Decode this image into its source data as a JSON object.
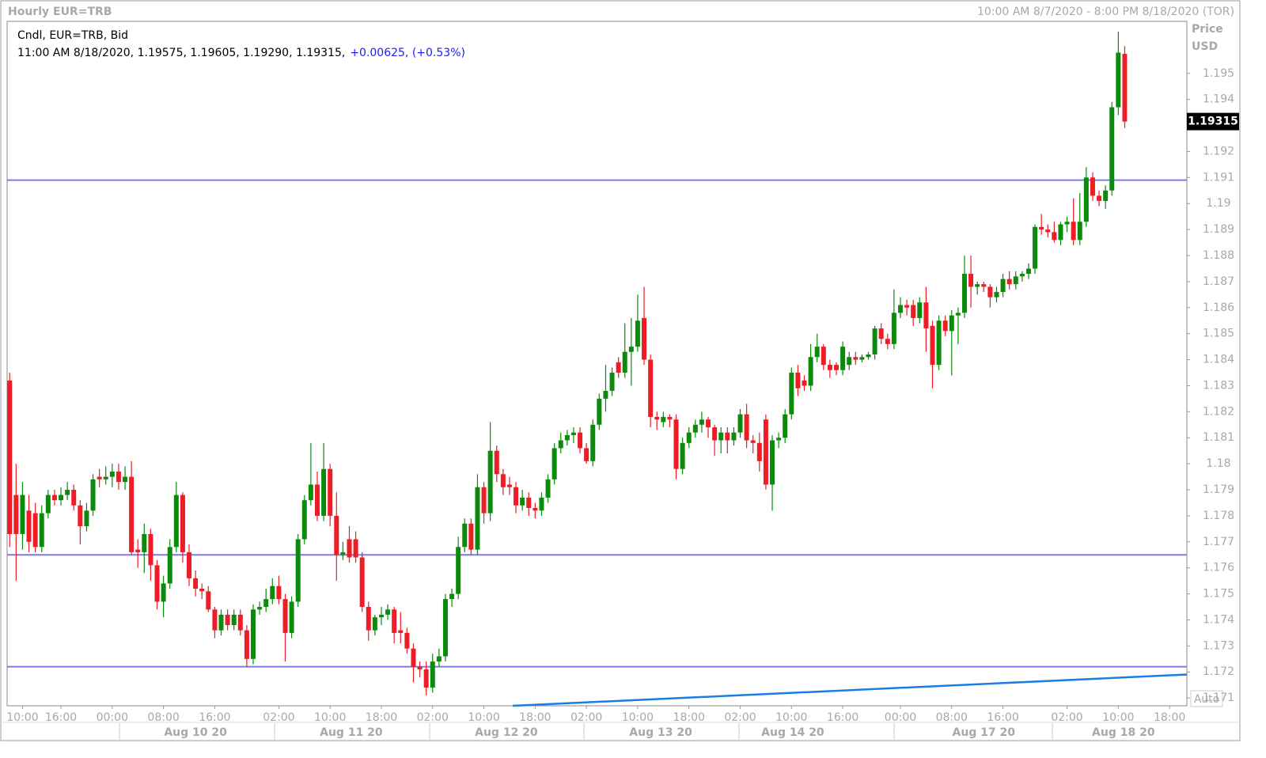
{
  "chart_data": {
    "type": "candlestick",
    "title": "Hourly EUR=TRB",
    "date_range": "10:00 AM 8/7/2020 - 8:00 PM 8/18/2020 (TOR)",
    "legend": {
      "label": "Cndl, EUR=TRB, Bid",
      "info": "11:00 AM 8/18/2020, 1.19575, 1.19605, 1.19290, 1.19315,",
      "change": "+0.00625, (+0.53%)"
    },
    "y_axis_title": "Price",
    "y_axis_unit": "USD",
    "scale_button": "Auto",
    "up_color": "#0c8a0c",
    "down_color": "#ee1c24",
    "open": [
      1.1832,
      1.1788,
      1.1773,
      1.1782,
      1.1781,
      1.1768,
      1.1781,
      1.1788,
      1.1786,
      1.1788,
      1.179,
      1.1784,
      1.1776,
      1.1782,
      1.1795,
      1.1794,
      1.1795,
      1.1797,
      1.1793,
      1.1795,
      1.1767,
      1.1766,
      1.1773,
      1.1761,
      1.1747,
      1.1754,
      1.1768,
      1.1788,
      1.1766,
      1.1756,
      1.1752,
      1.1751,
      1.1744,
      1.1736,
      1.1742,
      1.1738,
      1.1742,
      1.1736,
      1.1725,
      1.1744,
      1.1745,
      1.1748,
      1.1753,
      1.1748,
      1.1735,
      1.1747,
      1.1771,
      1.1786,
      1.1792,
      1.178,
      1.1798,
      1.178,
      1.1765,
      1.1771,
      1.1771,
      1.1764,
      1.1745,
      1.1736,
      1.1741,
      1.1742,
      1.1744,
      1.1736,
      1.1735,
      1.1729,
      1.1722,
      1.1721,
      1.1714,
      1.1724,
      1.1726,
      1.1748,
      1.175,
      1.1768,
      1.1777,
      1.1767,
      1.1791,
      1.1781,
      1.1805,
      1.1796,
      1.1792,
      1.1791,
      1.1784,
      1.1787,
      1.1783,
      1.1782,
      1.1787,
      1.1794,
      1.1806,
      1.1809,
      1.1811,
      1.1812,
      1.1806,
      1.1801,
      1.1815,
      1.1825,
      1.1828,
      1.1839,
      1.1835,
      1.1843,
      1.1845,
      1.1856,
      1.184,
      1.1818,
      1.1816,
      1.1818,
      1.1817,
      1.1798,
      1.1808,
      1.1812,
      1.1815,
      1.1817,
      1.1814,
      1.1809,
      1.1812,
      1.1809,
      1.1812,
      1.1819,
      1.1809,
      1.1808,
      1.1817,
      1.1792,
      1.1809,
      1.181,
      1.1819,
      1.1835,
      1.1832,
      1.183,
      1.1841,
      1.1845,
      1.1838,
      1.1838,
      1.1836,
      1.1838,
      1.1841,
      1.184,
      1.1841,
      1.1842,
      1.1852,
      1.1848,
      1.1846,
      1.1858,
      1.1861,
      1.1861,
      1.1856,
      1.1862,
      1.1853,
      1.1838,
      1.1855,
      1.1851,
      1.1857,
      1.1858,
      1.1873,
      1.1868,
      1.1869,
      1.1868,
      1.1864,
      1.1866,
      1.1871,
      1.1869,
      1.1872,
      1.1873,
      1.1875,
      1.1891,
      1.189,
      1.1889,
      1.1886,
      1.1892,
      1.1893,
      1.1886,
      1.1893,
      1.191,
      1.1903,
      1.1901,
      1.1905,
      1.1937,
      1.19575
    ],
    "high": [
      1.1835,
      1.18,
      1.1793,
      1.1788,
      1.1785,
      1.1784,
      1.179,
      1.179,
      1.1791,
      1.1793,
      1.1792,
      1.1786,
      1.1785,
      1.1796,
      1.1798,
      1.1799,
      1.18,
      1.18,
      1.1799,
      1.1801,
      1.1771,
      1.1777,
      1.1775,
      1.1763,
      1.1757,
      1.1771,
      1.1793,
      1.1789,
      1.1769,
      1.1759,
      1.1754,
      1.1753,
      1.1745,
      1.1744,
      1.1744,
      1.1744,
      1.1744,
      1.1738,
      1.1746,
      1.1747,
      1.1752,
      1.1756,
      1.1757,
      1.175,
      1.1749,
      1.1773,
      1.1788,
      1.1808,
      1.1797,
      1.1808,
      1.18,
      1.1789,
      1.177,
      1.1776,
      1.1774,
      1.1766,
      1.1747,
      1.1742,
      1.1745,
      1.1746,
      1.1745,
      1.1743,
      1.1737,
      1.1731,
      1.1724,
      1.1724,
      1.1727,
      1.1729,
      1.175,
      1.1752,
      1.1772,
      1.1779,
      1.1779,
      1.1796,
      1.1793,
      1.1816,
      1.1807,
      1.1798,
      1.1795,
      1.1793,
      1.179,
      1.1789,
      1.1785,
      1.1789,
      1.1796,
      1.1808,
      1.1812,
      1.1813,
      1.1814,
      1.1814,
      1.1808,
      1.1817,
      1.1827,
      1.1838,
      1.1837,
      1.1841,
      1.1854,
      1.1856,
      1.1865,
      1.1868,
      1.1842,
      1.182,
      1.182,
      1.1819,
      1.1819,
      1.181,
      1.1814,
      1.1817,
      1.182,
      1.1818,
      1.1815,
      1.1814,
      1.1814,
      1.1814,
      1.1821,
      1.1823,
      1.1811,
      1.1812,
      1.1819,
      1.1811,
      1.1812,
      1.1821,
      1.1837,
      1.1838,
      1.1834,
      1.1846,
      1.185,
      1.1846,
      1.184,
      1.1839,
      1.1847,
      1.1843,
      1.1843,
      1.1842,
      1.1843,
      1.1853,
      1.1854,
      1.185,
      1.1867,
      1.1864,
      1.1863,
      1.1863,
      1.1864,
      1.1868,
      1.1855,
      1.1857,
      1.1857,
      1.1859,
      1.186,
      1.188,
      1.188,
      1.187,
      1.187,
      1.1869,
      1.1868,
      1.1873,
      1.1874,
      1.1874,
      1.1874,
      1.1877,
      1.1892,
      1.1896,
      1.1892,
      1.1893,
      1.1893,
      1.1895,
      1.1902,
      1.1904,
      1.1914,
      1.1912,
      1.1905,
      1.1907,
      1.1939,
      1.1966,
      1.19605
    ],
    "low": [
      1.1768,
      1.1755,
      1.1767,
      1.1766,
      1.1766,
      1.1766,
      1.1779,
      1.1784,
      1.1784,
      1.1786,
      1.1782,
      1.1769,
      1.1774,
      1.178,
      1.1791,
      1.1792,
      1.1791,
      1.179,
      1.179,
      1.1765,
      1.176,
      1.1758,
      1.1755,
      1.1744,
      1.1741,
      1.1752,
      1.1766,
      1.1762,
      1.1753,
      1.1749,
      1.1748,
      1.1743,
      1.1733,
      1.1734,
      1.1736,
      1.1736,
      1.1734,
      1.1722,
      1.1723,
      1.1742,
      1.1743,
      1.1746,
      1.1746,
      1.1724,
      1.1733,
      1.1745,
      1.1769,
      1.1784,
      1.1778,
      1.1778,
      1.1776,
      1.1755,
      1.1763,
      1.1762,
      1.1762,
      1.1743,
      1.1732,
      1.1734,
      1.1738,
      1.174,
      1.1731,
      1.1731,
      1.1727,
      1.1716,
      1.1718,
      1.1711,
      1.1712,
      1.1722,
      1.1724,
      1.1745,
      1.1748,
      1.1766,
      1.1765,
      1.1765,
      1.1777,
      1.1778,
      1.1793,
      1.1788,
      1.1788,
      1.1781,
      1.1782,
      1.178,
      1.1779,
      1.178,
      1.1785,
      1.1792,
      1.1804,
      1.1807,
      1.1808,
      1.1804,
      1.18,
      1.1799,
      1.1813,
      1.182,
      1.1826,
      1.1833,
      1.1833,
      1.183,
      1.1843,
      1.1838,
      1.1814,
      1.1813,
      1.1814,
      1.1814,
      1.1794,
      1.1796,
      1.1806,
      1.181,
      1.1812,
      1.181,
      1.1803,
      1.1804,
      1.1804,
      1.1807,
      1.181,
      1.1806,
      1.1804,
      1.1797,
      1.179,
      1.1782,
      1.1806,
      1.1808,
      1.1817,
      1.1826,
      1.1828,
      1.1828,
      1.1839,
      1.1836,
      1.1833,
      1.1834,
      1.1834,
      1.1836,
      1.1838,
      1.1839,
      1.184,
      1.184,
      1.1846,
      1.1844,
      1.1844,
      1.1856,
      1.1857,
      1.1853,
      1.1854,
      1.1843,
      1.1829,
      1.1836,
      1.1849,
      1.1834,
      1.1846,
      1.1856,
      1.186,
      1.1865,
      1.1866,
      1.186,
      1.1862,
      1.1864,
      1.1867,
      1.1867,
      1.187,
      1.1871,
      1.1873,
      1.1888,
      1.1887,
      1.1885,
      1.1884,
      1.1889,
      1.1884,
      1.1884,
      1.1891,
      1.1901,
      1.1899,
      1.1898,
      1.1903,
      1.1934,
      1.1929
    ],
    "close": [
      1.1773,
      1.1773,
      1.1788,
      1.177,
      1.1768,
      1.1781,
      1.1788,
      1.1786,
      1.1788,
      1.179,
      1.1784,
      1.1776,
      1.1782,
      1.1794,
      1.1794,
      1.1795,
      1.1797,
      1.1793,
      1.1795,
      1.1766,
      1.1766,
      1.1773,
      1.1761,
      1.1747,
      1.1754,
      1.1768,
      1.1788,
      1.1766,
      1.1756,
      1.1752,
      1.1751,
      1.1744,
      1.1736,
      1.1742,
      1.1738,
      1.1742,
      1.1736,
      1.1725,
      1.1744,
      1.1745,
      1.1748,
      1.1753,
      1.1748,
      1.1735,
      1.1747,
      1.1771,
      1.1786,
      1.1792,
      1.178,
      1.1798,
      1.178,
      1.1765,
      1.1766,
      1.1764,
      1.1764,
      1.1745,
      1.1736,
      1.1741,
      1.1742,
      1.1744,
      1.1735,
      1.1735,
      1.1729,
      1.1722,
      1.1721,
      1.1714,
      1.1724,
      1.1726,
      1.1748,
      1.175,
      1.1768,
      1.1777,
      1.1767,
      1.1791,
      1.1781,
      1.1805,
      1.1796,
      1.1791,
      1.1791,
      1.1784,
      1.1787,
      1.1783,
      1.1782,
      1.1787,
      1.1794,
      1.1806,
      1.1809,
      1.1811,
      1.1812,
      1.1806,
      1.1801,
      1.1815,
      1.1825,
      1.1828,
      1.1835,
      1.1835,
      1.1843,
      1.1845,
      1.1855,
      1.184,
      1.1818,
      1.1817,
      1.1818,
      1.1817,
      1.1798,
      1.1808,
      1.1812,
      1.1815,
      1.1817,
      1.1814,
      1.1809,
      1.1812,
      1.1809,
      1.1812,
      1.1819,
      1.1809,
      1.1808,
      1.1801,
      1.1792,
      1.1809,
      1.181,
      1.1819,
      1.1835,
      1.1829,
      1.183,
      1.1841,
      1.1845,
      1.1838,
      1.1836,
      1.1836,
      1.1845,
      1.1841,
      1.184,
      1.1841,
      1.1842,
      1.1852,
      1.1848,
      1.1846,
      1.1858,
      1.1861,
      1.186,
      1.1856,
      1.1862,
      1.1852,
      1.1838,
      1.1855,
      1.1851,
      1.1857,
      1.1858,
      1.1873,
      1.1868,
      1.1869,
      1.1868,
      1.1864,
      1.1866,
      1.1871,
      1.1869,
      1.1872,
      1.1873,
      1.1875,
      1.1891,
      1.189,
      1.1889,
      1.1886,
      1.1892,
      1.1893,
      1.1886,
      1.1893,
      1.191,
      1.1903,
      1.1901,
      1.1905,
      1.1937,
      1.1958,
      1.19315
    ],
    "last_price": 1.19315,
    "hlines": [
      1.1909,
      1.1765,
      1.1722
    ],
    "hline_color": "#7b7bea",
    "trendline": {
      "x": [
        78.5,
        183.7
      ],
      "y": [
        1.1707,
        1.1719
      ],
      "color": "#1a7ee6"
    },
    "xlim": [
      -0.4,
      183.7
    ],
    "ylim": [
      1.1707,
      1.197
    ],
    "yticks": [
      1.171,
      1.172,
      1.173,
      1.174,
      1.175,
      1.176,
      1.177,
      1.178,
      1.179,
      1.18,
      1.181,
      1.182,
      1.183,
      1.184,
      1.185,
      1.186,
      1.187,
      1.188,
      1.189,
      1.19,
      1.191,
      1.192,
      1.193,
      1.194,
      1.195
    ],
    "xticks": [
      {
        "value": 2,
        "label": "10:00"
      },
      {
        "value": 8,
        "label": "16:00"
      },
      {
        "value": 16,
        "label": "00:00"
      },
      {
        "value": 24,
        "label": "08:00"
      },
      {
        "value": 32,
        "label": "16:00"
      },
      {
        "value": 42,
        "label": "02:00"
      },
      {
        "value": 50,
        "label": "10:00"
      },
      {
        "value": 58,
        "label": "18:00"
      },
      {
        "value": 66,
        "label": "02:00"
      },
      {
        "value": 74,
        "label": "10:00"
      },
      {
        "value": 82,
        "label": "18:00"
      },
      {
        "value": 90,
        "label": "02:00"
      },
      {
        "value": 98,
        "label": "10:00"
      },
      {
        "value": 106,
        "label": "18:00"
      },
      {
        "value": 114,
        "label": "02:00"
      },
      {
        "value": 122,
        "label": "10:00"
      },
      {
        "value": 130,
        "label": "16:00"
      },
      {
        "value": 139,
        "label": "00:00"
      },
      {
        "value": 147,
        "label": "08:00"
      },
      {
        "value": 155,
        "label": "16:00"
      },
      {
        "value": 165,
        "label": "02:00"
      },
      {
        "value": 173,
        "label": "10:00"
      },
      {
        "value": 181,
        "label": "18:00"
      }
    ],
    "date_ticks": [
      {
        "value": 29,
        "label": "Aug 10 20"
      },
      {
        "value": 53.3,
        "label": "Aug 11 20"
      },
      {
        "value": 77.5,
        "label": "Aug 12 20"
      },
      {
        "value": 101.6,
        "label": "Aug 13 20"
      },
      {
        "value": 122.2,
        "label": "Aug 14 20"
      },
      {
        "value": 152,
        "label": "Aug 17 20"
      },
      {
        "value": 173.8,
        "label": "Aug 18 20"
      }
    ]
  }
}
